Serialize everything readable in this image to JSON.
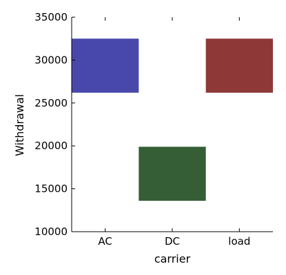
{
  "chart_data": {
    "type": "bar",
    "chart_style": "floating-bar",
    "categories": [
      "AC",
      "DC",
      "load"
    ],
    "series": [
      {
        "values": [
          {
            "low": 26200,
            "high": 32500
          },
          {
            "low": 13600,
            "high": 19900
          },
          {
            "low": 26200,
            "high": 32500
          }
        ]
      }
    ],
    "colors": [
      "#4848aa",
      "#355e35",
      "#8e3838"
    ],
    "title": "",
    "xlabel": "carrier",
    "ylabel": "Withdrawal",
    "ylim": [
      10000,
      35000
    ],
    "yticks": [
      10000,
      15000,
      20000,
      25000,
      30000,
      35000
    ],
    "grid": false,
    "legend": "none"
  }
}
